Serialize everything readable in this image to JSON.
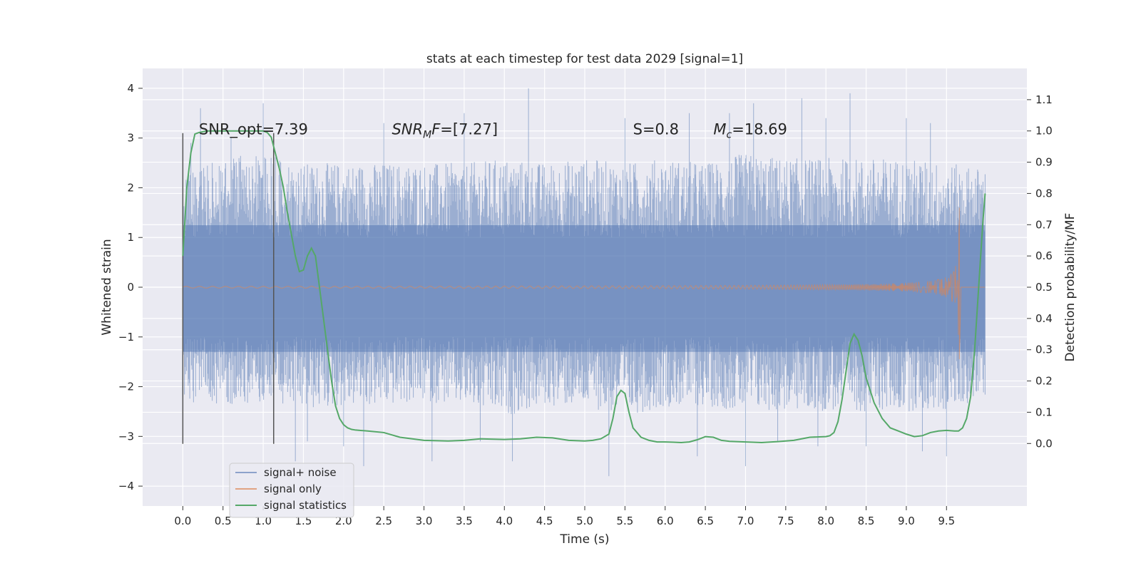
{
  "chart_data": {
    "type": "line",
    "title": "stats at each timestep for test data 2029 [signal=1]",
    "xlabel": "Time (s)",
    "ylabel": "Whitened strain",
    "ylabel_right": "Detection probability/MF",
    "xlim": [
      -0.5,
      10.5
    ],
    "ylim": [
      -4.4,
      4.4
    ],
    "ylim_right": [
      -0.2,
      1.2
    ],
    "x_ticks": [
      "0.0",
      "0.5",
      "1.0",
      "1.5",
      "2.0",
      "2.5",
      "3.0",
      "3.5",
      "4.0",
      "4.5",
      "5.0",
      "5.5",
      "6.0",
      "6.5",
      "7.0",
      "7.5",
      "8.0",
      "8.5",
      "9.0",
      "9.5"
    ],
    "y_ticks": [
      "4",
      "3",
      "2",
      "1",
      "0",
      "−1",
      "−2",
      "−3",
      "−4"
    ],
    "y_ticks_right": [
      "1.1",
      "1.0",
      "0.9",
      "0.8",
      "0.7",
      "0.6",
      "0.5",
      "0.4",
      "0.3",
      "0.2",
      "0.1",
      "0.0"
    ],
    "grid": true,
    "legend_position": "lower-left",
    "colors": {
      "background": "#eaeaf2",
      "grid": "#ffffff",
      "noise": "#4c72b0",
      "signal": "#dd8452",
      "statistics": "#55a868",
      "vline": "#555555"
    },
    "annotations": [
      {
        "text": "SNR_opt=7.39",
        "x": 0.2,
        "y": 3.1
      },
      {
        "text": "SNR_MF=[7.27]",
        "x": 2.6,
        "y": 3.1
      },
      {
        "text": "S=0.8",
        "x": 5.6,
        "y": 3.1
      },
      {
        "text": "M_c=18.69",
        "x": 6.6,
        "y": 3.1
      }
    ],
    "vertical_lines": [
      0.0,
      1.13
    ],
    "noise_envelope": {
      "x": [
        0.0,
        0.5,
        1.0,
        1.5,
        2.0,
        2.5,
        3.0,
        3.5,
        4.0,
        4.5,
        5.0,
        5.5,
        6.0,
        6.5,
        7.0,
        7.5,
        8.0,
        8.5,
        9.0,
        9.5,
        9.98
      ],
      "typical_max": [
        2.4,
        2.6,
        2.7,
        2.5,
        2.5,
        2.5,
        2.5,
        2.5,
        2.6,
        2.5,
        2.6,
        2.5,
        2.6,
        2.5,
        2.7,
        2.6,
        2.6,
        2.6,
        2.6,
        2.5,
        2.4
      ],
      "typical_min": [
        -2.3,
        -2.4,
        -2.3,
        -2.5,
        -2.4,
        -2.4,
        -2.3,
        -2.4,
        -2.6,
        -2.4,
        -2.4,
        -2.6,
        -2.4,
        -2.4,
        -2.5,
        -2.5,
        -2.5,
        -2.5,
        -2.5,
        -2.5,
        -2.2
      ],
      "peaks_up": [
        [
          0.1,
          2.9
        ],
        [
          0.22,
          3.6
        ],
        [
          0.6,
          3.0
        ],
        [
          1.0,
          3.7
        ],
        [
          2.5,
          3.3
        ],
        [
          3.5,
          3.5
        ],
        [
          4.3,
          4.0
        ],
        [
          5.5,
          3.4
        ],
        [
          6.3,
          3.5
        ],
        [
          6.8,
          3.5
        ],
        [
          7.1,
          3.7
        ],
        [
          7.7,
          3.8
        ],
        [
          8.0,
          3.4
        ],
        [
          8.3,
          3.9
        ],
        [
          9.0,
          3.4
        ],
        [
          9.3,
          3.3
        ]
      ],
      "peaks_down": [
        [
          1.4,
          -3.5
        ],
        [
          1.55,
          -3.1
        ],
        [
          2.0,
          -3.2
        ],
        [
          2.25,
          -3.6
        ],
        [
          3.1,
          -3.5
        ],
        [
          3.7,
          -3.1
        ],
        [
          4.1,
          -3.5
        ],
        [
          5.3,
          -3.8
        ],
        [
          6.4,
          -3.4
        ],
        [
          7.0,
          -3.6
        ],
        [
          7.4,
          -3.1
        ],
        [
          7.9,
          -3.2
        ],
        [
          8.5,
          -3.2
        ],
        [
          9.2,
          -3.3
        ],
        [
          9.5,
          -3.4
        ]
      ]
    },
    "signal_only": {
      "chirp_start": 0.0,
      "chirp_end": 9.66,
      "max_amplitude": 1.6,
      "min_amplitude": -1.45
    },
    "series": [
      {
        "name": "signal+ noise"
      },
      {
        "name": "signal only"
      },
      {
        "name": "signal statistics",
        "axis": "right",
        "x": [
          0.0,
          0.05,
          0.1,
          0.15,
          0.2,
          0.3,
          0.5,
          0.7,
          0.9,
          1.0,
          1.05,
          1.1,
          1.15,
          1.2,
          1.25,
          1.3,
          1.35,
          1.4,
          1.45,
          1.5,
          1.55,
          1.6,
          1.65,
          1.7,
          1.75,
          1.8,
          1.85,
          1.9,
          1.95,
          2.0,
          2.05,
          2.1,
          2.15,
          2.2,
          2.3,
          2.5,
          2.7,
          3.0,
          3.3,
          3.5,
          3.7,
          4.0,
          4.2,
          4.4,
          4.6,
          4.8,
          5.0,
          5.1,
          5.2,
          5.3,
          5.35,
          5.4,
          5.45,
          5.5,
          5.55,
          5.6,
          5.7,
          5.8,
          5.9,
          6.0,
          6.1,
          6.2,
          6.3,
          6.4,
          6.5,
          6.6,
          6.7,
          6.8,
          7.0,
          7.2,
          7.4,
          7.6,
          7.8,
          8.0,
          8.05,
          8.1,
          8.15,
          8.2,
          8.25,
          8.3,
          8.35,
          8.4,
          8.45,
          8.5,
          8.6,
          8.7,
          8.8,
          8.9,
          9.0,
          9.1,
          9.2,
          9.3,
          9.4,
          9.5,
          9.6,
          9.65,
          9.7,
          9.75,
          9.8,
          9.85,
          9.9,
          9.95,
          9.98
        ],
        "y": [
          0.6,
          0.82,
          0.93,
          0.99,
          0.995,
          1.0,
          1.0,
          1.0,
          1.0,
          1.0,
          0.995,
          0.98,
          0.93,
          0.88,
          0.82,
          0.74,
          0.67,
          0.6,
          0.55,
          0.555,
          0.6,
          0.625,
          0.6,
          0.5,
          0.4,
          0.3,
          0.2,
          0.12,
          0.08,
          0.06,
          0.05,
          0.045,
          0.043,
          0.042,
          0.04,
          0.035,
          0.02,
          0.01,
          0.008,
          0.01,
          0.015,
          0.013,
          0.015,
          0.02,
          0.018,
          0.01,
          0.008,
          0.01,
          0.015,
          0.03,
          0.08,
          0.15,
          0.17,
          0.16,
          0.1,
          0.05,
          0.02,
          0.01,
          0.005,
          0.005,
          0.004,
          0.003,
          0.005,
          0.012,
          0.022,
          0.02,
          0.01,
          0.007,
          0.005,
          0.003,
          0.006,
          0.01,
          0.02,
          0.022,
          0.025,
          0.035,
          0.07,
          0.14,
          0.23,
          0.32,
          0.35,
          0.33,
          0.28,
          0.21,
          0.13,
          0.08,
          0.05,
          0.04,
          0.03,
          0.022,
          0.025,
          0.035,
          0.04,
          0.042,
          0.04,
          0.04,
          0.05,
          0.08,
          0.15,
          0.3,
          0.5,
          0.7,
          0.8
        ]
      }
    ]
  }
}
